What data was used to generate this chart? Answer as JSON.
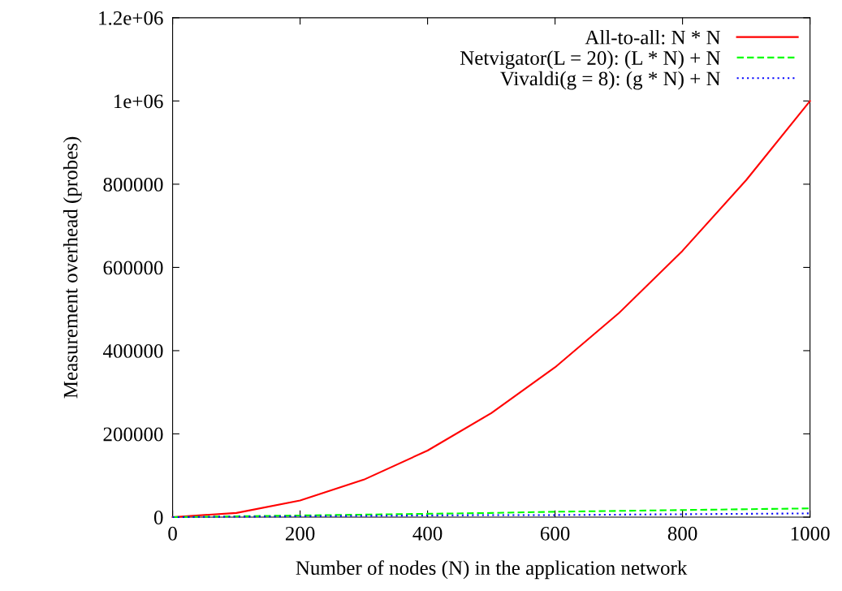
{
  "chart_data": {
    "type": "line",
    "xlabel": "Number of nodes (N) in the application network",
    "ylabel": "Measurement overhead (probes)",
    "x": [
      0,
      100,
      200,
      300,
      400,
      500,
      600,
      700,
      800,
      900,
      1000
    ],
    "series": [
      {
        "name": "All-to-all: N * N",
        "color": "#ff0000",
        "line_style": "solid",
        "values": [
          0,
          10000,
          40000,
          90000,
          160000,
          250000,
          360000,
          490000,
          640000,
          810000,
          1000000
        ]
      },
      {
        "name": "Netvigator(L = 20): (L * N) + N",
        "color": "#00ff00",
        "line_style": "dashed",
        "values": [
          0,
          2000,
          4000,
          6000,
          8000,
          10000,
          13000,
          15000,
          17000,
          19000,
          21000
        ]
      },
      {
        "name": "Vivaldi(g = 8): (g * N) + N",
        "color": "#0000ff",
        "line_style": "dotted",
        "values": [
          0,
          1000,
          2000,
          3000,
          4000,
          5000,
          5000,
          6000,
          7000,
          8000,
          9000
        ]
      }
    ],
    "xlim": [
      0,
      1000
    ],
    "xticks": [
      0,
      200,
      400,
      600,
      800,
      1000
    ],
    "ylim": [
      0,
      1200000
    ],
    "yticks": [
      0,
      200000,
      400000,
      600000,
      800000,
      {
        "value": 1000000,
        "label": "1e+06"
      },
      {
        "value": 1200000,
        "label": "1.2e+06"
      }
    ],
    "grid": false,
    "legend": "top right",
    "marker": "none"
  }
}
